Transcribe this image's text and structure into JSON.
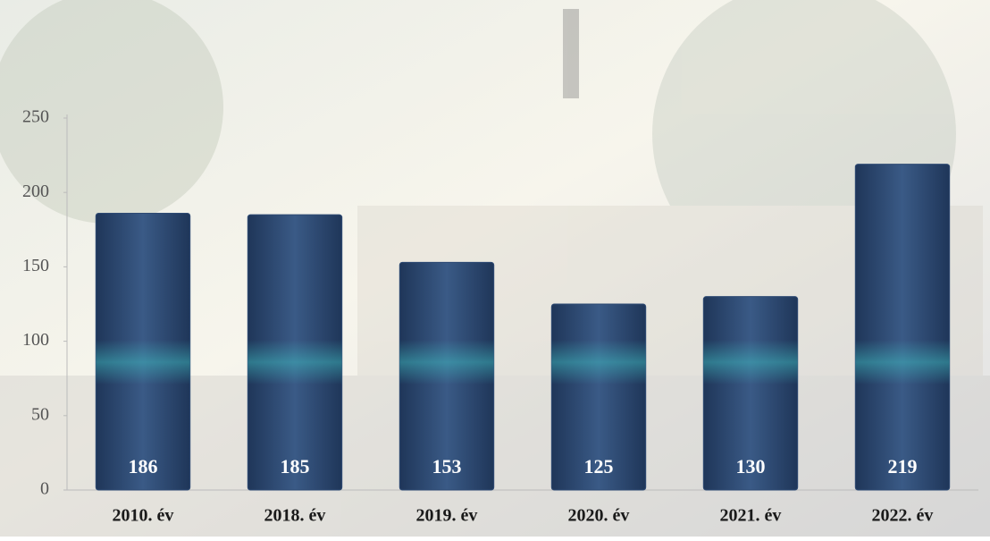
{
  "chart_data": {
    "type": "bar",
    "categories": [
      "2010. év",
      "2018. év",
      "2019. év",
      "2020. év",
      "2021. év",
      "2022. év"
    ],
    "values": [
      186,
      185,
      153,
      125,
      130,
      219
    ],
    "color": "#2f4b74",
    "ylim": [
      0,
      250
    ],
    "yticks": [
      0,
      50,
      100,
      150,
      200,
      250
    ],
    "grid": false
  }
}
